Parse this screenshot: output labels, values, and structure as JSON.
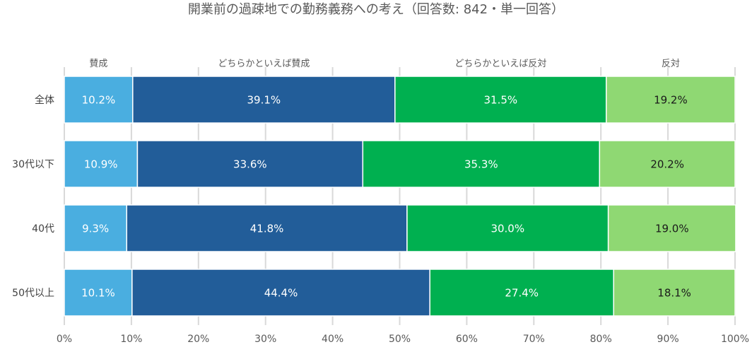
{
  "chart_data": {
    "type": "bar",
    "orientation": "horizontal",
    "stacked": true,
    "title": "開業前の過疎地での勤務義務への考え（回答数: 842・単一回答）",
    "categories": [
      "全体",
      "30代以下",
      "40代",
      "50代以上"
    ],
    "series": [
      {
        "name": "賛成",
        "color": "#4aaee0",
        "label_color": "#ffffff",
        "values": [
          10.2,
          10.9,
          9.3,
          10.1
        ],
        "labels": [
          "10.2%",
          "10.9%",
          "9.3%",
          "10.1%"
        ]
      },
      {
        "name": "どちらかといえば賛成",
        "color": "#225d99",
        "label_color": "#ffffff",
        "values": [
          39.1,
          33.6,
          41.8,
          44.4
        ],
        "labels": [
          "39.1%",
          "33.6%",
          "41.8%",
          "44.4%"
        ]
      },
      {
        "name": "どちらかといえば反対",
        "color": "#00b050",
        "label_color": "#ffffff",
        "values": [
          31.5,
          35.3,
          30.0,
          27.4
        ],
        "labels": [
          "31.5%",
          "35.3%",
          "30.0%",
          "27.4%"
        ]
      },
      {
        "name": "反対",
        "color": "#8fd873",
        "label_color": "#1a1a1a",
        "values": [
          19.2,
          20.2,
          19.0,
          18.1
        ],
        "labels": [
          "19.2%",
          "20.2%",
          "19.0%",
          "18.1%"
        ]
      }
    ],
    "xlim": [
      0,
      100
    ],
    "xticks": [
      0,
      10,
      20,
      30,
      40,
      50,
      60,
      70,
      80,
      90,
      100
    ],
    "xtick_labels": [
      "0%",
      "10%",
      "20%",
      "30%",
      "40%",
      "50%",
      "60%",
      "70%",
      "80%",
      "90%",
      "100%"
    ],
    "legend_placement": "top, centered above each segment",
    "grid": true,
    "grid_color": "#d9d9d9"
  }
}
